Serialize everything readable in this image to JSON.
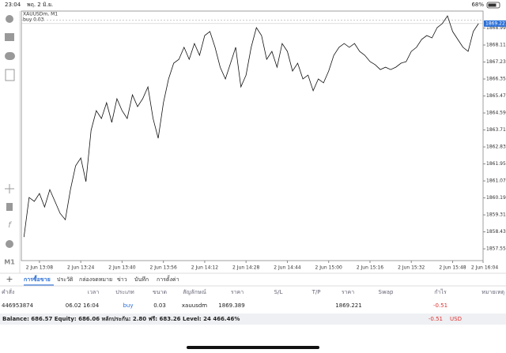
{
  "status_bar": {
    "time": "23:04",
    "date": "พฤ. 2 มิ.ย.",
    "battery": "68%"
  },
  "chart_data": {
    "type": "line",
    "symbol": "XAUUSDm, M1",
    "timeframe": "M1",
    "color": "#111111",
    "position_line": {
      "label": "buy 0.03",
      "value": 1869.389
    },
    "price_tag": 1869.221,
    "categories": [
      null,
      null,
      null,
      "2 Jun 13:08",
      null,
      null,
      null,
      null,
      null,
      null,
      null,
      "2 Jun 13:24",
      null,
      null,
      null,
      null,
      null,
      null,
      null,
      "2 Jun 13:40",
      null,
      null,
      null,
      null,
      null,
      null,
      null,
      "2 Jun 13:56",
      null,
      null,
      null,
      null,
      null,
      null,
      null,
      "2 Jun 14:12",
      null,
      null,
      null,
      null,
      null,
      null,
      null,
      "2 Jun 14:28",
      null,
      null,
      null,
      null,
      null,
      null,
      null,
      "2 Jun 14:44",
      null,
      null,
      null,
      null,
      null,
      null,
      null,
      "2 Jun 15:00",
      null,
      null,
      null,
      null,
      null,
      null,
      null,
      "2 Jun 15:16",
      null,
      null,
      null,
      null,
      null,
      null,
      null,
      "2 Jun 15:32",
      null,
      null,
      null,
      null,
      null,
      null,
      null,
      "2 Jun 15:48",
      null,
      null,
      null,
      null,
      null,
      null,
      null,
      "2 Jun 16:04"
    ],
    "values": [
      1858.16,
      1860.21,
      1860.01,
      1860.42,
      1859.72,
      1860.62,
      1860.01,
      1859.39,
      1859.06,
      1860.62,
      1861.85,
      1862.26,
      1861.03,
      1863.69,
      1864.71,
      1864.3,
      1865.12,
      1864.1,
      1865.33,
      1864.71,
      1864.3,
      1865.53,
      1864.92,
      1865.33,
      1865.94,
      1864.3,
      1863.28,
      1865.12,
      1866.35,
      1867.17,
      1867.37,
      1867.99,
      1867.37,
      1868.19,
      1867.58,
      1868.6,
      1868.81,
      1867.99,
      1866.96,
      1866.35,
      1867.17,
      1867.99,
      1865.94,
      1866.55,
      1867.99,
      1869.01,
      1868.6,
      1867.37,
      1867.78,
      1866.96,
      1868.19,
      1867.78,
      1866.76,
      1867.17,
      1866.35,
      1866.55,
      1865.74,
      1866.35,
      1866.15,
      1866.76,
      1867.58,
      1867.99,
      1868.19,
      1867.99,
      1868.19,
      1867.78,
      1867.58,
      1867.25,
      1867.09,
      1866.84,
      1866.96,
      1866.84,
      1866.96,
      1867.17,
      1867.25,
      1867.78,
      1867.99,
      1868.4,
      1868.6,
      1868.48,
      1869.01,
      1869.22,
      1869.62,
      1868.81,
      1868.4,
      1867.99,
      1867.78,
      1868.81,
      1869.22,
      null,
      null,
      null
    ],
    "ylim": [
      1856.94,
      1869.87
    ],
    "yticks": [
      {
        "value": 1857.55,
        "label": "1857.550"
      },
      {
        "value": 1858.43,
        "label": "1858.430"
      },
      {
        "value": 1859.31,
        "label": "1859.310"
      },
      {
        "value": 1860.19,
        "label": "1860.190"
      },
      {
        "value": 1861.07,
        "label": "1861.070"
      },
      {
        "value": 1861.95,
        "label": "1861.950"
      },
      {
        "value": 1862.83,
        "label": "1862.830"
      },
      {
        "value": 1863.71,
        "label": "1863.710"
      },
      {
        "value": 1864.59,
        "label": "1864.590"
      },
      {
        "value": 1865.47,
        "label": "1865.470"
      },
      {
        "value": 1866.35,
        "label": "1866.350"
      },
      {
        "value": 1867.23,
        "label": "1867.230"
      },
      {
        "value": 1868.11,
        "label": "1868.110"
      },
      {
        "value": 1868.99,
        "label": "1868.990"
      }
    ]
  },
  "tabs": [
    "การซื้อขาย",
    "ประวัติ",
    "กล่องจดหมาย",
    "ข่าว",
    "บันทึก",
    "การตั้งค่า"
  ],
  "table": {
    "header": [
      "คำสั่ง",
      "เวลา",
      "ประเภท",
      "ขนาด",
      "สัญลักษณ์",
      "ราคา",
      "S/L",
      "T/P",
      "ราคา",
      "Swap",
      "กำไร",
      "หมายเหตุ"
    ],
    "rows": [
      [
        "446953874",
        "06.02 16:04",
        "buy",
        "0.03",
        "xauusdm",
        "1869.389",
        null,
        null,
        "1869.221",
        null,
        "-0.51",
        null
      ]
    ]
  },
  "footer": {
    "summary": "Balance: 686.57 Equity: 686.06 หลักประกัน: 2.80 ฟรี: 683.26 Level: 24 466.46%",
    "profit": "-0.51",
    "currency": "USD"
  }
}
